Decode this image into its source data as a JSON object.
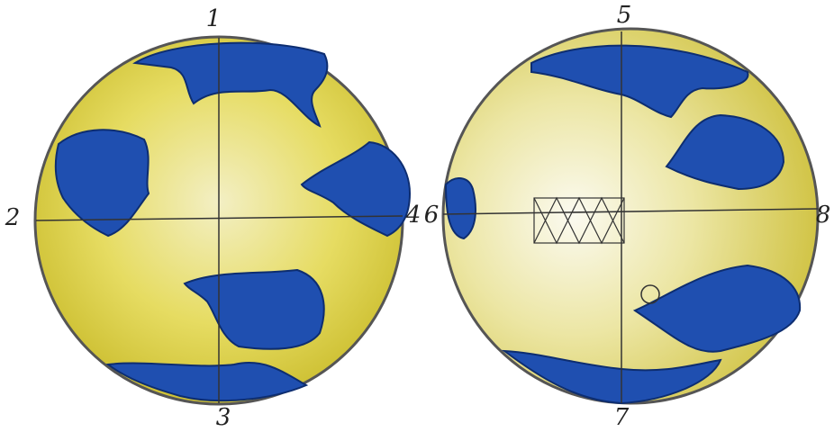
{
  "left_hemisphere": {
    "markers": {
      "top": "1",
      "left": "2",
      "bottom": "3",
      "right": "4"
    }
  },
  "right_hemisphere": {
    "markers": {
      "top": "5",
      "left": "6",
      "bottom": "7",
      "right": "8"
    }
  }
}
